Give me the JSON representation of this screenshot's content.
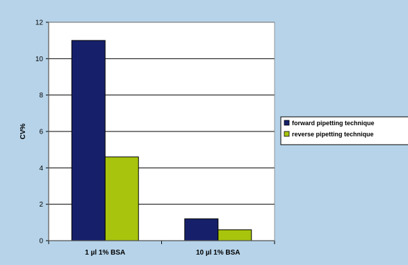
{
  "chart_data": {
    "type": "bar",
    "title": "",
    "xlabel": "",
    "ylabel": "CV%",
    "categories": [
      "1 µl 1% BSA",
      "10 µl 1% BSA"
    ],
    "series": [
      {
        "name": "forward pipetting technique",
        "color": "#16206a",
        "values": [
          11.0,
          1.2
        ]
      },
      {
        "name": "reverse pipetting technique",
        "color": "#a8c40c",
        "values": [
          4.6,
          0.6
        ]
      }
    ],
    "ylim": [
      0,
      12
    ],
    "yticks": [
      0,
      2,
      4,
      6,
      8,
      10,
      12
    ],
    "grid": true,
    "legend": "right",
    "colors": {
      "background": "#b6d3e9",
      "plot_area": "#ffffff",
      "gridline": "#000000"
    }
  }
}
